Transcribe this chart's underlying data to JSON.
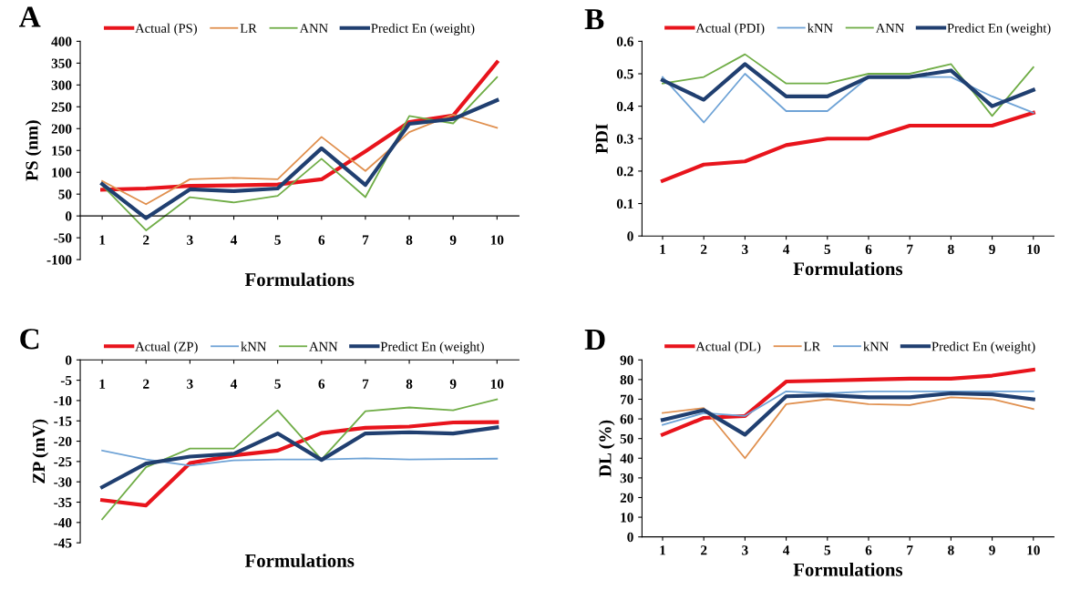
{
  "chart_data": [
    {
      "type": "line",
      "title": "A",
      "categories": [
        "1",
        "2",
        "3",
        "4",
        "5",
        "6",
        "7",
        "8",
        "9",
        "10"
      ],
      "xlabel": "Formulations",
      "ylabel": "PS (nm)",
      "ylim": [
        -100,
        400
      ],
      "yticks": [
        -100,
        -50,
        0,
        50,
        100,
        150,
        200,
        250,
        300,
        350,
        400
      ],
      "legend": "top",
      "grid": false,
      "series": [
        {
          "name": "Actual (PS)",
          "color": "#e8141c",
          "values": [
            60,
            63,
            69,
            70,
            72,
            84,
            148,
            215,
            230,
            352
          ]
        },
        {
          "name": "LR",
          "color": "#e0904f",
          "values": [
            80,
            27,
            84,
            87,
            84,
            181,
            103,
            192,
            232,
            202
          ]
        },
        {
          "name": "ANN",
          "color": "#70ad47",
          "values": [
            70,
            -33,
            43,
            31,
            46,
            131,
            43,
            229,
            212,
            318
          ]
        },
        {
          "name": "Predict En (weight)",
          "color": "#203f70",
          "values": [
            73,
            -5,
            61,
            57,
            63,
            155,
            71,
            211,
            222,
            265
          ]
        }
      ]
    },
    {
      "type": "line",
      "title": "B",
      "categories": [
        "1",
        "2",
        "3",
        "4",
        "5",
        "6",
        "7",
        "8",
        "9",
        "10"
      ],
      "xlabel": "Formulations",
      "ylabel": "PDI",
      "ylim": [
        0,
        0.6
      ],
      "yticks": [
        0,
        0.1,
        0.2,
        0.3,
        0.4,
        0.5,
        0.6
      ],
      "legend": "top",
      "grid": false,
      "series": [
        {
          "name": "Actual (PDI)",
          "color": "#e8141c",
          "values": [
            0.17,
            0.22,
            0.23,
            0.28,
            0.3,
            0.3,
            0.34,
            0.34,
            0.34,
            0.38
          ]
        },
        {
          "name": "kNN",
          "color": "#6fa3d6",
          "values": [
            0.49,
            0.35,
            0.5,
            0.385,
            0.385,
            0.49,
            0.49,
            0.49,
            0.43,
            0.38
          ]
        },
        {
          "name": "ANN",
          "color": "#70ad47",
          "values": [
            0.47,
            0.49,
            0.56,
            0.47,
            0.47,
            0.5,
            0.5,
            0.53,
            0.37,
            0.52
          ]
        },
        {
          "name": "Predict En (weight)",
          "color": "#203f70",
          "values": [
            0.48,
            0.42,
            0.53,
            0.43,
            0.43,
            0.49,
            0.49,
            0.51,
            0.4,
            0.45
          ]
        }
      ]
    },
    {
      "type": "line",
      "title": "C",
      "categories": [
        "1",
        "2",
        "3",
        "4",
        "5",
        "6",
        "7",
        "8",
        "9",
        "10"
      ],
      "xlabel": "Formulations",
      "ylabel": "ZP (mV)",
      "ylim": [
        -45,
        0
      ],
      "yticks": [
        -45,
        -40,
        -35,
        -30,
        -25,
        -20,
        -15,
        -10,
        -5,
        0
      ],
      "legend": "top",
      "grid": false,
      "series": [
        {
          "name": "Actual (ZP)",
          "color": "#e8141c",
          "values": [
            -34.5,
            -35.8,
            -25.4,
            -23.5,
            -22.3,
            -18.0,
            -16.7,
            -16.4,
            -15.4,
            -15.3
          ]
        },
        {
          "name": "kNN",
          "color": "#6fa3d6",
          "values": [
            -22.3,
            -24.5,
            -26.0,
            -24.7,
            -24.5,
            -24.5,
            -24.2,
            -24.5,
            -24.4,
            -24.3
          ]
        },
        {
          "name": "ANN",
          "color": "#70ad47",
          "values": [
            -39.2,
            -26.4,
            -21.8,
            -21.8,
            -12.4,
            -24.5,
            -12.6,
            -11.7,
            -12.4,
            -9.7
          ]
        },
        {
          "name": "Predict En (weight)",
          "color": "#203f70",
          "values": [
            -31.3,
            -25.5,
            -23.8,
            -23.1,
            -18.1,
            -24.6,
            -18.1,
            -17.8,
            -18.1,
            -16.6
          ]
        }
      ]
    },
    {
      "type": "line",
      "title": "D",
      "categories": [
        "1",
        "2",
        "3",
        "4",
        "5",
        "6",
        "7",
        "8",
        "9",
        "10"
      ],
      "xlabel": "Formulations",
      "ylabel": "DL (%)",
      "ylim": [
        0,
        90
      ],
      "yticks": [
        0,
        10,
        20,
        30,
        40,
        50,
        60,
        70,
        80,
        90
      ],
      "legend": "top",
      "grid": false,
      "series": [
        {
          "name": "Actual (DL)",
          "color": "#e8141c",
          "values": [
            52,
            60.5,
            61.5,
            79,
            79.5,
            80,
            80.5,
            80.5,
            82,
            85
          ]
        },
        {
          "name": "LR",
          "color": "#e0904f",
          "values": [
            63,
            65.5,
            40,
            67.5,
            70,
            67.5,
            67,
            71,
            70,
            65
          ]
        },
        {
          "name": "kNN",
          "color": "#6fa3d6",
          "values": [
            57,
            63,
            61.5,
            74,
            73,
            74,
            74,
            74,
            74,
            74
          ]
        },
        {
          "name": "Predict En (weight)",
          "color": "#203f70",
          "values": [
            59.5,
            64.5,
            52,
            71.5,
            72,
            71,
            71,
            73,
            72.5,
            70
          ]
        }
      ]
    }
  ]
}
